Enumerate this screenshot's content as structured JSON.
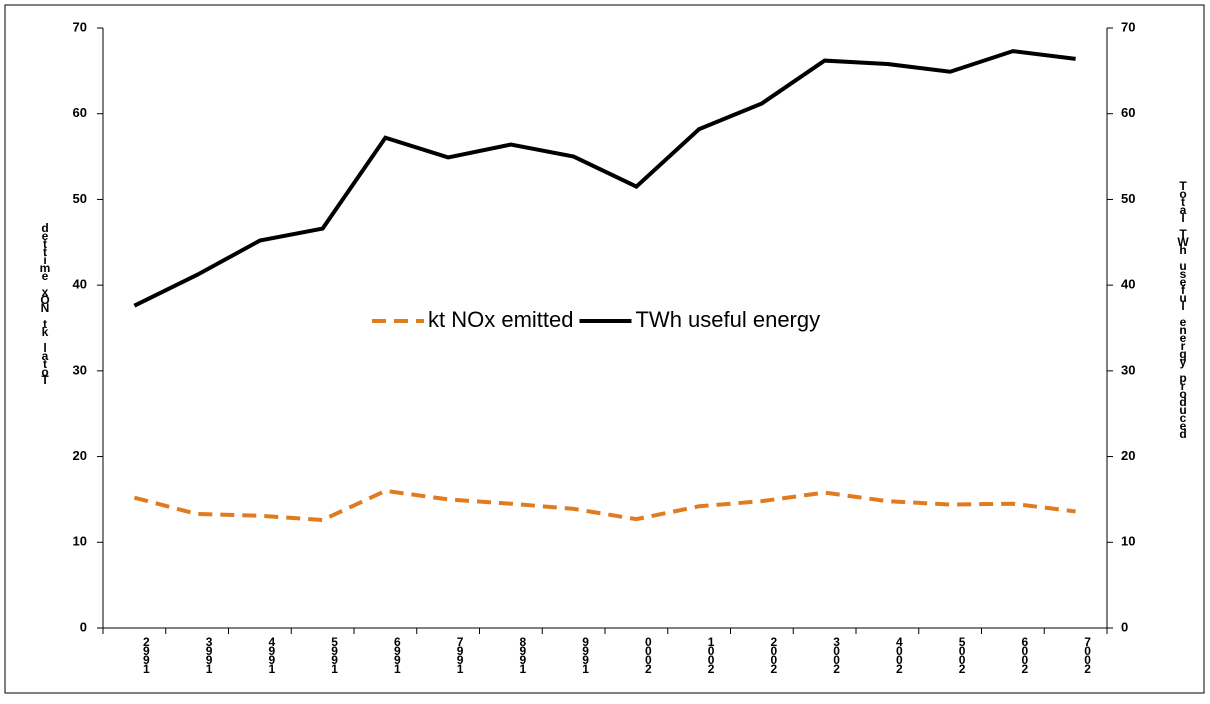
{
  "chart_data": {
    "type": "line",
    "categories": [
      "1992",
      "1993",
      "1994",
      "1995",
      "1996",
      "1997",
      "1998",
      "1999",
      "2000",
      "2001",
      "2002",
      "2003",
      "2004",
      "2005",
      "2006",
      "2007"
    ],
    "series": [
      {
        "name": "kt NOx emitted",
        "color": "#e07b20",
        "dash": true,
        "values": [
          15.2,
          13.3,
          13.1,
          12.6,
          16.0,
          15.0,
          14.5,
          13.9,
          12.7,
          14.2,
          14.8,
          15.8,
          14.8,
          14.4,
          14.5,
          13.6
        ]
      },
      {
        "name": "TWh useful energy",
        "color": "#000000",
        "axis": "y2",
        "values": [
          37.6,
          41.2,
          45.2,
          46.6,
          57.2,
          54.9,
          56.4,
          55.0,
          51.5,
          58.2,
          61.2,
          66.2,
          65.8,
          64.9,
          67.3,
          66.4
        ]
      }
    ],
    "ylabel": "Total kt NOx emitted",
    "y2label": "Total TWh useful energy produced",
    "ylim": [
      0,
      70
    ],
    "yticks": [
      0,
      10,
      20,
      30,
      40,
      50,
      60,
      70
    ],
    "y2lim": [
      0,
      70
    ],
    "y2ticks": [
      0,
      10,
      20,
      30,
      40,
      50,
      60,
      70
    ]
  }
}
